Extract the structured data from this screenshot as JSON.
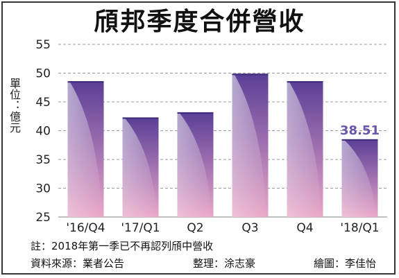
{
  "title": "頎邦季度合併營收",
  "unit_label": "單位：億元",
  "chart_data": {
    "type": "bar",
    "title": "頎邦季度合併營收",
    "ylabel": "單位：億元",
    "categories": [
      "'16/Q4",
      "'17/Q1",
      "Q2",
      "Q3",
      "Q4",
      "'18/Q1"
    ],
    "values": [
      48.6,
      42.3,
      43.2,
      49.9,
      48.6,
      38.51
    ],
    "data_labels": [
      null,
      null,
      null,
      null,
      null,
      "38.51"
    ],
    "yticks": [
      25,
      30,
      35,
      40,
      45,
      50,
      55
    ],
    "ylim": [
      25,
      55
    ],
    "grid": true,
    "legend": "none"
  },
  "colors": {
    "bar_top": "#5a3f96",
    "bar_mid": "#9a6cae",
    "bar_bottom": "#e8a6c6",
    "highlight_label": "#6a56a8",
    "grid": "#9a9a9a"
  },
  "footer": {
    "note": "註：2018年第一季已不再認列頎中營收",
    "source": "資料來源：業者公告",
    "editor": "整理：涂志豪",
    "illustrator": "繪圖：李佳怡"
  }
}
